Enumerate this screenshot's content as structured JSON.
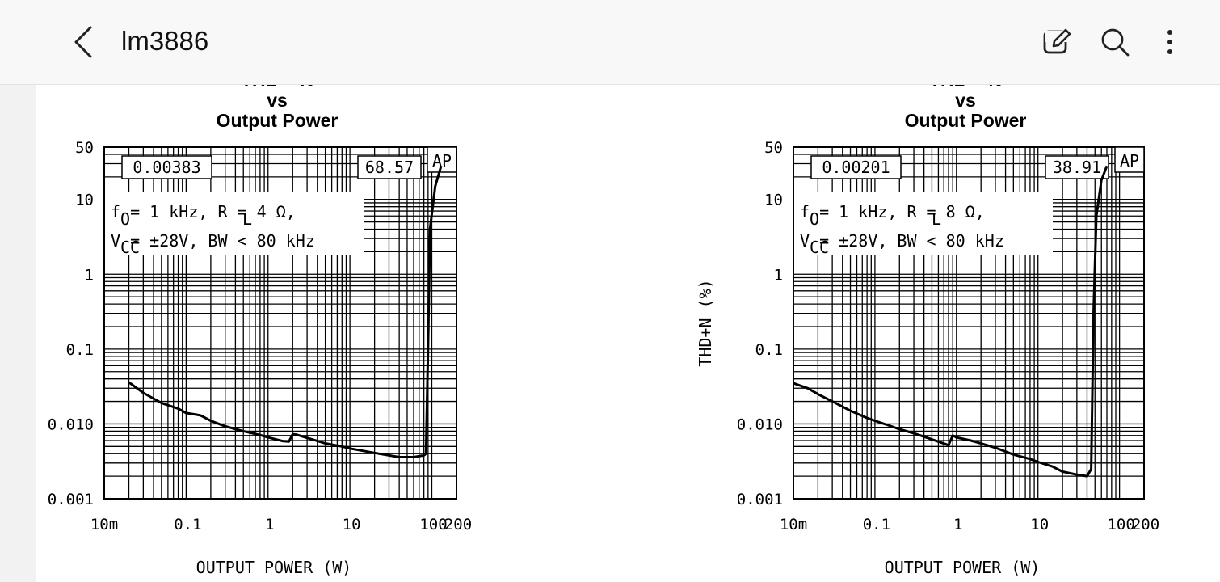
{
  "app": {
    "title": "lm3886"
  },
  "toolbar": {
    "icons": [
      "back-icon",
      "edit-icon",
      "search-icon",
      "more-icon"
    ]
  },
  "chart_data": [
    {
      "type": "line",
      "title": "THD + N\nvs\nOutput Power",
      "title_lines": [
        "THD + N",
        "vs",
        "Output Power"
      ],
      "xlabel": "OUTPUT POWER (W)",
      "ylabel": "",
      "x_scale": "log",
      "y_scale": "log",
      "xlim": [
        0.01,
        200
      ],
      "ylim": [
        0.001,
        50
      ],
      "x_ticks": [
        0.01,
        0.1,
        1,
        10,
        100,
        200
      ],
      "x_tick_labels": [
        "10m",
        "0.1",
        "1",
        "10",
        "100",
        "200"
      ],
      "y_ticks": [
        0.001,
        0.01,
        0.1,
        1,
        10,
        50
      ],
      "y_tick_labels": [
        "0.001",
        "0.010",
        "0.1",
        "1",
        "10",
        "50"
      ],
      "grid": true,
      "boxes": {
        "left": "0.00383",
        "right": "68.57",
        "corner": "AP"
      },
      "conditions": {
        "line1": "f  =  1 kHz, R  =  4 Ω,",
        "sub1": "O",
        "sub2": "L",
        "line2": "V   =  ±28V, BW < 80 kHz",
        "sub3": "CC"
      },
      "series": [
        {
          "x": [
            0.02,
            0.03,
            0.05,
            0.08,
            0.1,
            0.15,
            0.2,
            0.3,
            0.5,
            0.8,
            1.0,
            1.5,
            1.8,
            2.0,
            2.2,
            3.0,
            5.0,
            8.0,
            10,
            20,
            40,
            60,
            80,
            85,
            90,
            95,
            110,
            130
          ],
          "y": [
            0.036,
            0.026,
            0.019,
            0.016,
            0.014,
            0.013,
            0.011,
            0.0093,
            0.008,
            0.0071,
            0.0066,
            0.0059,
            0.0058,
            0.0073,
            0.0072,
            0.0065,
            0.0055,
            0.005,
            0.0047,
            0.0041,
            0.0036,
            0.0036,
            0.0038,
            0.004,
            0.1,
            4.0,
            15,
            28
          ]
        }
      ]
    },
    {
      "type": "line",
      "title": "THD + N\nvs\nOutput Power",
      "title_lines": [
        "THD + N",
        "vs",
        "Output Power"
      ],
      "xlabel": "OUTPUT POWER (W)",
      "ylabel": "THD+N (%)",
      "x_scale": "log",
      "y_scale": "log",
      "xlim": [
        0.01,
        200
      ],
      "ylim": [
        0.001,
        50
      ],
      "x_ticks": [
        0.01,
        0.1,
        1,
        10,
        100,
        200
      ],
      "x_tick_labels": [
        "10m",
        "0.1",
        "1",
        "10",
        "100",
        "200"
      ],
      "y_ticks": [
        0.001,
        0.01,
        0.1,
        1,
        10,
        50
      ],
      "y_tick_labels": [
        "0.001",
        "0.010",
        "0.1",
        "1",
        "10",
        "50"
      ],
      "grid": true,
      "boxes": {
        "left": "0.00201",
        "right": "38.91",
        "corner": "AP"
      },
      "conditions": {
        "line1": "f  =  1 kHz, R  =  8 Ω,",
        "sub1": "O",
        "sub2": "L",
        "line2": "V   =  ±28V, BW < 80 kHz",
        "sub3": "CC"
      },
      "series": [
        {
          "x": [
            0.01,
            0.015,
            0.02,
            0.03,
            0.05,
            0.08,
            0.1,
            0.15,
            0.2,
            0.3,
            0.5,
            0.8,
            0.9,
            1.0,
            1.5,
            2.0,
            3.0,
            5.0,
            8.0,
            10,
            15,
            20,
            30,
            40,
            45,
            48,
            52,
            60,
            70
          ],
          "y": [
            0.035,
            0.03,
            0.025,
            0.02,
            0.015,
            0.012,
            0.011,
            0.0095,
            0.0085,
            0.0075,
            0.0062,
            0.0052,
            0.007,
            0.0066,
            0.006,
            0.0055,
            0.0048,
            0.0039,
            0.0034,
            0.0031,
            0.0027,
            0.0023,
            0.0021,
            0.002,
            0.0025,
            0.3,
            6,
            18,
            28
          ]
        }
      ]
    }
  ]
}
